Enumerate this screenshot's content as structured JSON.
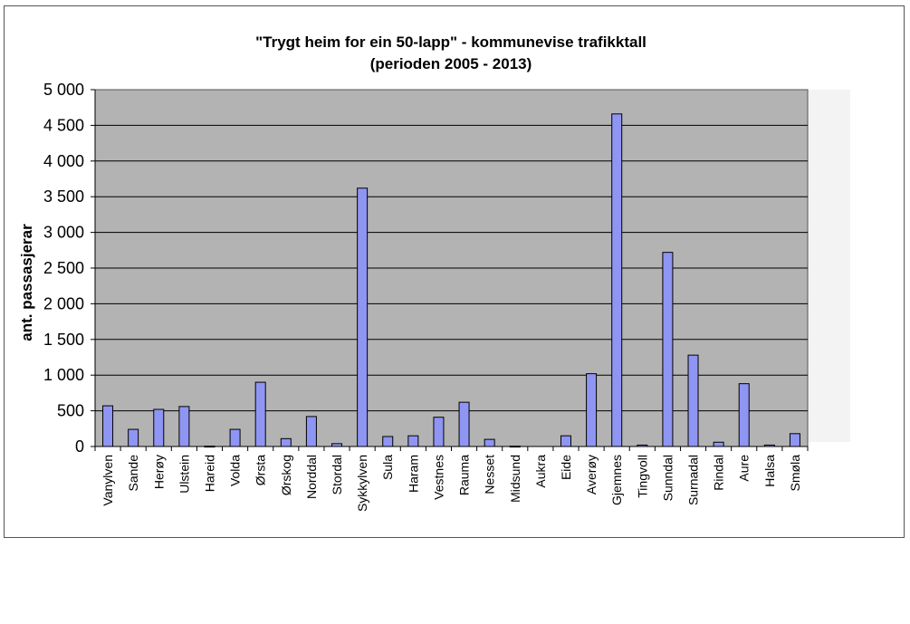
{
  "chart_data": {
    "type": "bar",
    "title": "\"Trygt heim for ein 50-lapp\" - kommunevise trafikktall",
    "subtitle": "(perioden 2005 - 2013)",
    "xlabel": "",
    "ylabel": "ant. passasjerar",
    "ylim": [
      0,
      5000
    ],
    "yticks": [
      "5 000",
      "4 500",
      "4 000",
      "3 500",
      "3 000",
      "2 500",
      "2 000",
      "1 500",
      "1 000",
      "500",
      "0"
    ],
    "grid": true,
    "legend": "none",
    "colors": {
      "bar": "#8f95f2",
      "bar_edge": "#000000",
      "plot_bg": "#b3b3b3",
      "grid": "#000000"
    },
    "categories": [
      "Vanylven",
      "Sande",
      "Herøy",
      "Ulstein",
      "Hareid",
      "Volda",
      "Ørsta",
      "Ørskog",
      "Norddal",
      "Stordal",
      "Sykkylven",
      "Sula",
      "Haram",
      "Vestnes",
      "Rauma",
      "Nesset",
      "Midsund",
      "Aukra",
      "Eide",
      "Averøy",
      "Gjemnes",
      "Tingvoll",
      "Sunndal",
      "Surnadal",
      "Rindal",
      "Aure",
      "Halsa",
      "Smøla"
    ],
    "values": [
      570,
      240,
      520,
      560,
      5,
      240,
      900,
      110,
      420,
      40,
      3620,
      140,
      150,
      410,
      620,
      100,
      5,
      0,
      150,
      1020,
      4660,
      20,
      2720,
      1280,
      60,
      880,
      20,
      180
    ]
  }
}
